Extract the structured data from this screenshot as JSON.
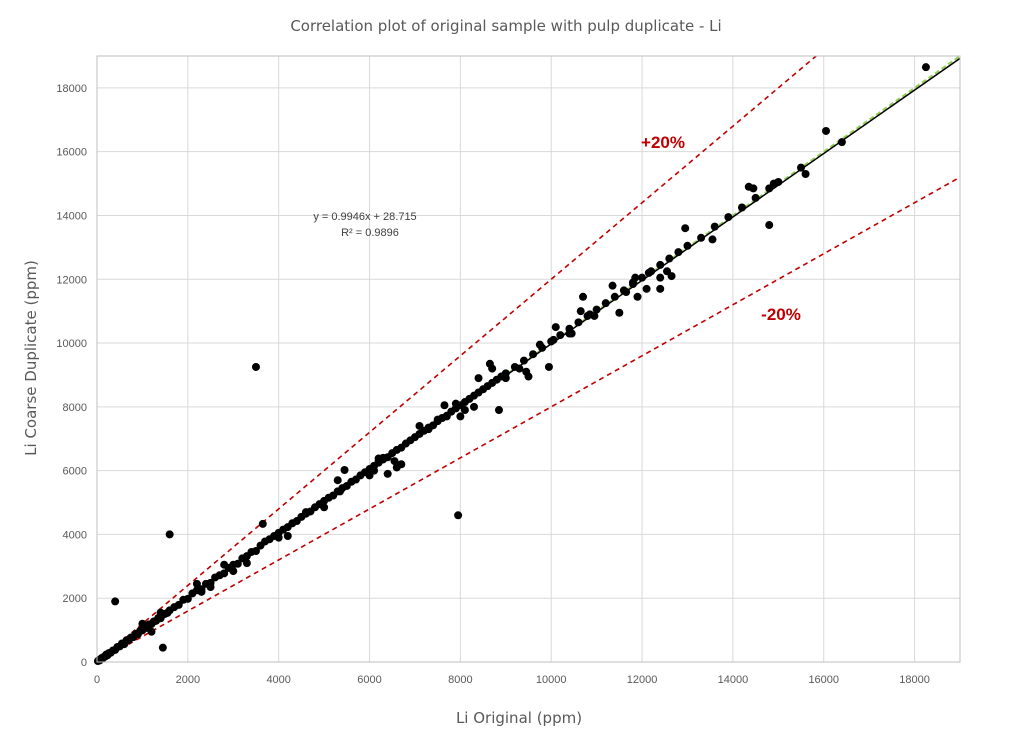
{
  "chart_data": {
    "type": "scatter",
    "title": "Correlation plot of original sample with pulp duplicate - Li",
    "xlabel": "Li Original (ppm)",
    "ylabel": "Li Coarse Duplicate (ppm)",
    "xlim": [
      0,
      19000
    ],
    "ylim": [
      0,
      19000
    ],
    "xticks": [
      0,
      2000,
      4000,
      6000,
      8000,
      10000,
      12000,
      14000,
      16000,
      18000
    ],
    "yticks": [
      0,
      2000,
      4000,
      6000,
      8000,
      10000,
      12000,
      14000,
      16000,
      18000
    ],
    "grid": true,
    "trendline": {
      "slope": 0.9946,
      "intercept": 28.715,
      "equation": "y = 0.9946x + 28.715",
      "r2_label": "R² = 0.9896",
      "color": "#000000"
    },
    "reference_lines": [
      {
        "label": "+20%",
        "slope": 1.2,
        "color": "#c00000"
      },
      {
        "label": "-20%",
        "slope": 0.8,
        "color": "#c00000"
      },
      {
        "label": "",
        "slope": 1.0,
        "color": "#92d050"
      }
    ],
    "marker_color": "#000000",
    "points": [
      [
        20,
        30
      ],
      [
        40,
        60
      ],
      [
        60,
        50
      ],
      [
        80,
        90
      ],
      [
        100,
        120
      ],
      [
        120,
        110
      ],
      [
        150,
        160
      ],
      [
        180,
        170
      ],
      [
        200,
        230
      ],
      [
        230,
        210
      ],
      [
        260,
        280
      ],
      [
        300,
        290
      ],
      [
        350,
        360
      ],
      [
        400,
        380
      ],
      [
        450,
        470
      ],
      [
        500,
        490
      ],
      [
        550,
        580
      ],
      [
        600,
        560
      ],
      [
        650,
        680
      ],
      [
        700,
        690
      ],
      [
        750,
        770
      ],
      [
        800,
        780
      ],
      [
        850,
        880
      ],
      [
        900,
        870
      ],
      [
        950,
        980
      ],
      [
        1000,
        990
      ],
      [
        1050,
        1080
      ],
      [
        1100,
        1070
      ],
      [
        1150,
        1180
      ],
      [
        1200,
        1190
      ],
      [
        1250,
        1270
      ],
      [
        1300,
        1290
      ],
      [
        1350,
        1380
      ],
      [
        1400,
        1370
      ],
      [
        1450,
        1480
      ],
      [
        1500,
        1510
      ],
      [
        1550,
        1540
      ],
      [
        1600,
        1620
      ],
      [
        1700,
        1720
      ],
      [
        1800,
        1790
      ],
      [
        1900,
        1950
      ],
      [
        2000,
        1980
      ],
      [
        2100,
        2150
      ],
      [
        2200,
        2250
      ],
      [
        2300,
        2280
      ],
      [
        2400,
        2450
      ],
      [
        2500,
        2480
      ],
      [
        2600,
        2650
      ],
      [
        2700,
        2720
      ],
      [
        2800,
        2780
      ],
      [
        2900,
        2950
      ],
      [
        3000,
        3050
      ],
      [
        3100,
        3080
      ],
      [
        3200,
        3250
      ],
      [
        3300,
        3320
      ],
      [
        3400,
        3450
      ],
      [
        3500,
        3480
      ],
      [
        3600,
        3650
      ],
      [
        3700,
        3780
      ],
      [
        3800,
        3850
      ],
      [
        3900,
        3950
      ],
      [
        4000,
        4050
      ],
      [
        4100,
        4150
      ],
      [
        4200,
        4230
      ],
      [
        4300,
        4350
      ],
      [
        4400,
        4420
      ],
      [
        4500,
        4550
      ],
      [
        4600,
        4650
      ],
      [
        4700,
        4720
      ],
      [
        4800,
        4850
      ],
      [
        4900,
        4950
      ],
      [
        5000,
        5050
      ],
      [
        5100,
        5150
      ],
      [
        5200,
        5220
      ],
      [
        5300,
        5350
      ],
      [
        5400,
        5450
      ],
      [
        5500,
        5520
      ],
      [
        5600,
        5650
      ],
      [
        5700,
        5720
      ],
      [
        5800,
        5850
      ],
      [
        5900,
        5950
      ],
      [
        6000,
        6050
      ],
      [
        6100,
        6150
      ],
      [
        6200,
        6250
      ],
      [
        6300,
        6350
      ],
      [
        6400,
        6420
      ],
      [
        6500,
        6550
      ],
      [
        6600,
        6650
      ],
      [
        6700,
        6720
      ],
      [
        6800,
        6850
      ],
      [
        6900,
        6950
      ],
      [
        7000,
        7050
      ],
      [
        7100,
        7150
      ],
      [
        7200,
        7250
      ],
      [
        7300,
        7350
      ],
      [
        7400,
        7420
      ],
      [
        7500,
        7550
      ],
      [
        7600,
        7650
      ],
      [
        7700,
        7720
      ],
      [
        7800,
        7850
      ],
      [
        7900,
        7950
      ],
      [
        8000,
        8050
      ],
      [
        8100,
        8150
      ],
      [
        8200,
        8250
      ],
      [
        8300,
        8350
      ],
      [
        8400,
        8450
      ],
      [
        8500,
        8550
      ],
      [
        8600,
        8650
      ],
      [
        8700,
        8750
      ],
      [
        8800,
        8850
      ],
      [
        8900,
        8950
      ],
      [
        9000,
        9050
      ],
      [
        9200,
        9250
      ],
      [
        9400,
        9450
      ],
      [
        9600,
        9650
      ],
      [
        9800,
        9850
      ],
      [
        10000,
        10050
      ],
      [
        10200,
        10250
      ],
      [
        10400,
        10450
      ],
      [
        10600,
        10650
      ],
      [
        10800,
        10850
      ],
      [
        11000,
        11050
      ],
      [
        11200,
        11250
      ],
      [
        11400,
        11450
      ],
      [
        11600,
        11650
      ],
      [
        11800,
        11850
      ],
      [
        12000,
        12050
      ],
      [
        12200,
        12250
      ],
      [
        12400,
        12450
      ],
      [
        12600,
        12650
      ],
      [
        12800,
        12850
      ],
      [
        13000,
        13050
      ],
      [
        13300,
        13300
      ],
      [
        13600,
        13650
      ],
      [
        13900,
        13950
      ],
      [
        14200,
        14250
      ],
      [
        14500,
        14550
      ],
      [
        14800,
        14850
      ],
      [
        15000,
        15050
      ],
      [
        15500,
        15500
      ],
      [
        5300,
        5700
      ],
      [
        5450,
        6020
      ],
      [
        5350,
        5350
      ],
      [
        6000,
        5850
      ],
      [
        6200,
        6300
      ],
      [
        6400,
        5900
      ],
      [
        6600,
        6100
      ],
      [
        6700,
        6200
      ],
      [
        6300,
        6400
      ],
      [
        6200,
        6380
      ],
      [
        6100,
        6000
      ],
      [
        6550,
        6300
      ],
      [
        7100,
        7400
      ],
      [
        7300,
        7300
      ],
      [
        7500,
        7600
      ],
      [
        7650,
        8050
      ],
      [
        7700,
        7700
      ],
      [
        7900,
        8100
      ],
      [
        8000,
        7700
      ],
      [
        8100,
        7900
      ],
      [
        8300,
        8000
      ],
      [
        8400,
        8900
      ],
      [
        8650,
        9350
      ],
      [
        8700,
        9200
      ],
      [
        8850,
        7900
      ],
      [
        9000,
        8900
      ],
      [
        9300,
        9200
      ],
      [
        9450,
        9100
      ],
      [
        9500,
        8950
      ],
      [
        9750,
        9950
      ],
      [
        9950,
        9250
      ],
      [
        10050,
        10100
      ],
      [
        10100,
        10500
      ],
      [
        10400,
        10300
      ],
      [
        10450,
        10300
      ],
      [
        10650,
        11000
      ],
      [
        10700,
        11450
      ],
      [
        10850,
        10900
      ],
      [
        10950,
        10850
      ],
      [
        11350,
        11800
      ],
      [
        11500,
        10950
      ],
      [
        11650,
        11600
      ],
      [
        11800,
        11900
      ],
      [
        11850,
        12050
      ],
      [
        11900,
        11450
      ],
      [
        12100,
        11700
      ],
      [
        12150,
        12200
      ],
      [
        12400,
        11700
      ],
      [
        12400,
        12050
      ],
      [
        12550,
        12250
      ],
      [
        12650,
        12100
      ],
      [
        12950,
        13600
      ],
      [
        13550,
        13250
      ],
      [
        14350,
        14900
      ],
      [
        14450,
        14850
      ],
      [
        14800,
        13700
      ],
      [
        14900,
        15000
      ],
      [
        15600,
        15300
      ],
      [
        16050,
        16650
      ],
      [
        16400,
        16300
      ],
      [
        18250,
        18650
      ],
      [
        3500,
        9250
      ],
      [
        1600,
        4000
      ],
      [
        400,
        1900
      ],
      [
        7950,
        4600
      ],
      [
        1450,
        450
      ],
      [
        3650,
        4330
      ],
      [
        2200,
        2450
      ],
      [
        2300,
        2200
      ],
      [
        2800,
        3050
      ],
      [
        3000,
        2850
      ],
      [
        4000,
        3900
      ],
      [
        4200,
        3950
      ],
      [
        4600,
        4700
      ],
      [
        5000,
        4850
      ],
      [
        3300,
        3100
      ],
      [
        1000,
        1200
      ],
      [
        1200,
        950
      ],
      [
        1400,
        1550
      ],
      [
        2500,
        2350
      ]
    ],
    "annotations": [
      {
        "text": "+20%",
        "color": "#c00000"
      },
      {
        "text": "-20%",
        "color": "#c00000"
      }
    ]
  }
}
